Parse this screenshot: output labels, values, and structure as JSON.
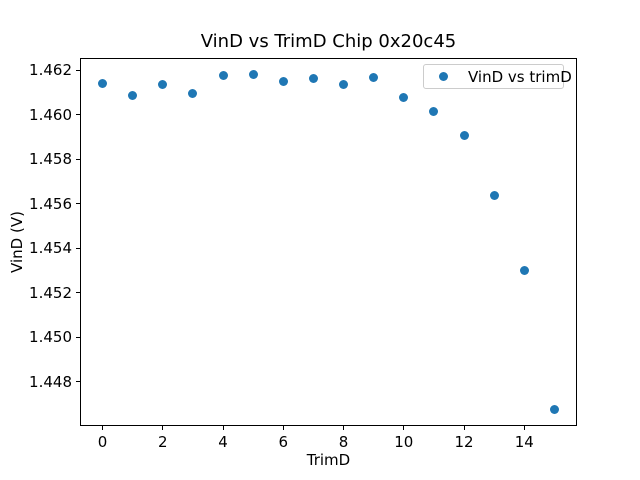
{
  "figure": {
    "background": "#ffffff",
    "text_color": "#000000"
  },
  "chart_data": {
    "type": "scatter",
    "title": "VinD vs TrimD Chip 0x20c45",
    "xlabel": "TrimD",
    "ylabel": "VinD (V)",
    "xlim": [
      -0.75,
      15.75
    ],
    "ylim": [
      1.44601,
      1.46254
    ],
    "xticks": [
      0,
      2,
      4,
      6,
      8,
      10,
      12,
      14
    ],
    "xtick_labels": [
      "0",
      "2",
      "4",
      "6",
      "8",
      "10",
      "12",
      "14"
    ],
    "yticks": [
      1.448,
      1.45,
      1.452,
      1.454,
      1.456,
      1.458,
      1.46,
      1.462
    ],
    "ytick_labels": [
      "1.448",
      "1.450",
      "1.452",
      "1.454",
      "1.456",
      "1.458",
      "1.460",
      "1.462"
    ],
    "grid": false,
    "legend": {
      "position": "upper-right",
      "label": "VinD vs trimD",
      "marker_color": "#1f77b4"
    },
    "series": [
      {
        "name": "VinD vs trimD",
        "marker": "circle",
        "color": "#1f77b4",
        "x": [
          0,
          1,
          2,
          3,
          4,
          5,
          6,
          7,
          8,
          9,
          10,
          11,
          12,
          13,
          14,
          15
        ],
        "y": [
          1.4614,
          1.46084,
          1.46133,
          1.46096,
          1.46175,
          1.46179,
          1.46149,
          1.4616,
          1.46135,
          1.46167,
          1.46075,
          1.46012,
          1.45907,
          1.45636,
          1.453,
          1.44676
        ]
      }
    ]
  }
}
